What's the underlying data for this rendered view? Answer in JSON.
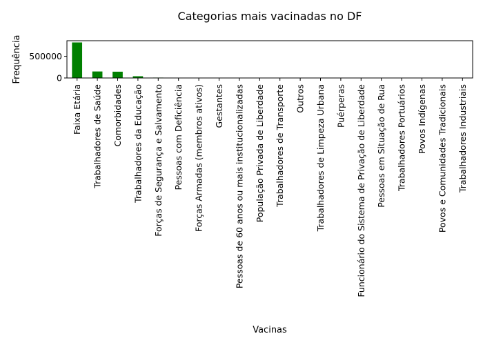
{
  "chart_data": {
    "type": "bar",
    "title": "Categorias mais vacinadas no DF",
    "xlabel": "Vacinas",
    "ylabel": "Frequência",
    "bar_color": "#008000",
    "ylim": [
      0,
      860000
    ],
    "yticks": [
      0,
      500000
    ],
    "ytick_labels": [
      "0",
      "500000"
    ],
    "grid": false,
    "legend": "none",
    "categories": [
      "Faixa Etária",
      "Trabalhadores de Saúde",
      "Comorbidades",
      "Trabalhadores da Educação",
      "Forças de Segurança e Salvamento",
      "Pessoas com Deficiência",
      "Forças Armadas (membros ativos)",
      "Gestantes",
      "Pessoas de 60 anos ou mais institucionalizadas",
      "População Privada de Liberdade",
      "Trabalhadores de Transporte",
      "Outros",
      "Trabalhadores de Limpeza Urbana",
      "Puérperas",
      "Funcionário do Sistema de Privação de Liberdade",
      "Pessoas em Situação de Rua",
      "Trabalhadores Portuários",
      "Povos Indígenas",
      "Povos e Comunidades Tradicionais",
      "Trabalhadores Industriais"
    ],
    "values": [
      820000,
      150000,
      145000,
      40000,
      9000,
      7000,
      5000,
      4000,
      3500,
      3000,
      2500,
      2000,
      1500,
      1200,
      1000,
      800,
      600,
      400,
      300,
      200
    ]
  }
}
